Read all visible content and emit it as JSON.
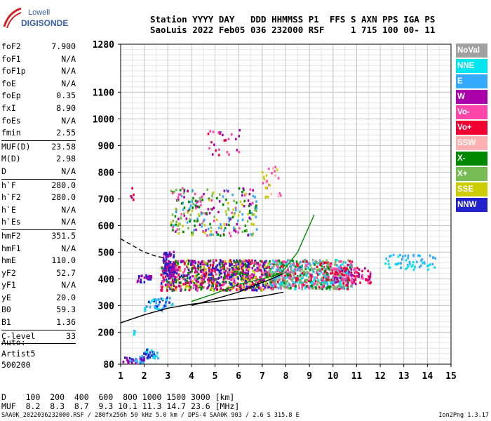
{
  "logo": {
    "line1": "Lowell",
    "line2": "DIGISONDE"
  },
  "header": {
    "labels": "Station YYYY DAY   DDD HHMMSS P1  FFS S AXN PPS IGA PS",
    "values": "SaoLuis 2022 Feb05 036 232000 RSF     1 715 100 00- 11"
  },
  "params": [
    {
      "k": "foF2",
      "v": "7.900"
    },
    {
      "k": "foF1",
      "v": "N/A"
    },
    {
      "k": "foF1p",
      "v": "N/A"
    },
    {
      "k": "foE",
      "v": "N/A"
    },
    {
      "k": "foEp",
      "v": "0.35"
    },
    {
      "k": "fxI",
      "v": "8.90"
    },
    {
      "k": "foEs",
      "v": "N/A"
    },
    {
      "k": "fmin",
      "v": "2.55"
    },
    {
      "sep": true
    },
    {
      "k": "MUF(D)",
      "v": "23.58"
    },
    {
      "k": "M(D)",
      "v": "2.98"
    },
    {
      "k": "D",
      "v": "N/A"
    },
    {
      "sep": true
    },
    {
      "k": "h`F",
      "v": "280.0"
    },
    {
      "k": "h`F2",
      "v": "280.0"
    },
    {
      "k": "h`E",
      "v": "N/A"
    },
    {
      "k": "h`Es",
      "v": "N/A"
    },
    {
      "sep": true
    },
    {
      "k": "hmF2",
      "v": "351.5"
    },
    {
      "k": "hmF1",
      "v": "N/A"
    },
    {
      "k": "hmE",
      "v": "110.0"
    },
    {
      "k": "yF2",
      "v": "52.7"
    },
    {
      "k": "yF1",
      "v": "N/A"
    },
    {
      "k": "yE",
      "v": "20.0"
    },
    {
      "k": "B0",
      "v": "59.3"
    },
    {
      "k": "B1",
      "v": "1.36"
    },
    {
      "sep": true
    },
    {
      "k": "C-level",
      "v": "33"
    },
    {
      "sep": true
    }
  ],
  "auto": {
    "l1": "Auto:",
    "l2": "Artist5",
    "l3": "500200"
  },
  "dmuf": {
    "d_row": "D    100  200  400  600  800 1000 1500 3000 [km]",
    "muf_row": "MUF  8.2  8.3  8.7  9.3 10.1 11.3 14.7 23.6 [MHz]"
  },
  "footer": "SAA0K_2022036232000.RSF / 280fx256h 50 kHz 5.0 km / DPS-4 SAA0K 903 / 2.6 S 315.8 E",
  "version": "Ion2Png 1.3.17",
  "legend": [
    {
      "label": "NoVal",
      "color": "#a0a0a0"
    },
    {
      "label": "NNE",
      "color": "#00e5ee"
    },
    {
      "label": "E",
      "color": "#33aaff"
    },
    {
      "label": "W",
      "color": "#aa00aa"
    },
    {
      "label": "Vo-",
      "color": "#ff44aa"
    },
    {
      "label": "Vo+",
      "color": "#ee0033"
    },
    {
      "label": "SSW",
      "color": "#ffb0b0"
    },
    {
      "label": "X-",
      "color": "#008800"
    },
    {
      "label": "X+",
      "color": "#77bb55"
    },
    {
      "label": "SSE",
      "color": "#cccc00"
    },
    {
      "label": "NNW",
      "color": "#2222cc"
    }
  ],
  "chart_data": {
    "type": "scatter",
    "title": "",
    "xlabel": "",
    "ylabel": "",
    "xlim": [
      1,
      15
    ],
    "ylim": [
      80,
      1280
    ],
    "xticks": [
      1,
      2,
      3,
      4,
      5,
      6,
      7,
      8,
      9,
      10,
      11,
      12,
      13,
      14,
      15
    ],
    "yticks": [
      80,
      200,
      300,
      400,
      500,
      600,
      700,
      800,
      900,
      1000,
      1100,
      1280
    ],
    "ylabel_ticks": [
      80,
      200,
      300,
      400,
      500,
      600,
      700,
      800,
      900,
      1000,
      1100,
      1280
    ],
    "grid": true,
    "ionogram_clusters": [
      {
        "x": [
          1.1,
          2.0
        ],
        "y": [
          80,
          105
        ],
        "colors": [
          "#2222cc",
          "#33aaff",
          "#aa00aa"
        ],
        "n": 40
      },
      {
        "x": [
          1.9,
          2.6
        ],
        "y": [
          100,
          135
        ],
        "colors": [
          "#00e5ee",
          "#33aaff",
          "#2222cc"
        ],
        "n": 35
      },
      {
        "x": [
          1.5,
          1.6
        ],
        "y": [
          190,
          205
        ],
        "colors": [
          "#33aaff",
          "#00e5ee"
        ],
        "n": 5
      },
      {
        "x": [
          1.7,
          2.3
        ],
        "y": [
          385,
          415
        ],
        "colors": [
          "#2222cc",
          "#aa00aa"
        ],
        "n": 30
      },
      {
        "x": [
          2.7,
          7.3
        ],
        "y": [
          355,
          470
        ],
        "colors": [
          "#aa00aa",
          "#ee0033",
          "#ff44aa",
          "#2222cc",
          "#cccc00",
          "#008800"
        ],
        "n": 900
      },
      {
        "x": [
          2.8,
          3.3
        ],
        "y": [
          405,
          500
        ],
        "colors": [
          "#aa00aa",
          "#2222cc"
        ],
        "n": 80
      },
      {
        "x": [
          7.3,
          10.8
        ],
        "y": [
          360,
          470
        ],
        "colors": [
          "#33aaff",
          "#00e5ee",
          "#77bb55",
          "#008800",
          "#ff44aa",
          "#ee0033",
          "#a0a0a0"
        ],
        "n": 700
      },
      {
        "x": [
          10.0,
          11.6
        ],
        "y": [
          380,
          440
        ],
        "colors": [
          "#ee0033",
          "#ff44aa",
          "#aa00aa"
        ],
        "n": 100
      },
      {
        "x": [
          12.2,
          14.4
        ],
        "y": [
          430,
          490
        ],
        "colors": [
          "#00e5ee",
          "#33aaff"
        ],
        "n": 60
      },
      {
        "x": [
          3.1,
          6.8
        ],
        "y": [
          560,
          740
        ],
        "colors": [
          "#008800",
          "#77bb55",
          "#cccc00",
          "#ff44aa",
          "#aa00aa",
          "#33aaff"
        ],
        "n": 260
      },
      {
        "x": [
          4.6,
          6.1
        ],
        "y": [
          860,
          960
        ],
        "colors": [
          "#ee0033",
          "#ff44aa",
          "#aa00aa"
        ],
        "n": 25
      },
      {
        "x": [
          7.0,
          7.8
        ],
        "y": [
          700,
          820
        ],
        "colors": [
          "#ffb0b0",
          "#cccc00",
          "#ff44aa"
        ],
        "n": 30
      },
      {
        "x": [
          1.4,
          1.6
        ],
        "y": [
          690,
          740
        ],
        "colors": [
          "#ee0033",
          "#aa00aa"
        ],
        "n": 6
      },
      {
        "x": [
          2.0,
          3.2
        ],
        "y": [
          280,
          330
        ],
        "colors": [
          "#33aaff",
          "#00e5ee",
          "#2222cc"
        ],
        "n": 50
      }
    ],
    "trace_x_mode_line": {
      "x": [
        4.0,
        5.0,
        6.0,
        7.0,
        7.8,
        8.5,
        9.0,
        9.2
      ],
      "y": [
        315,
        345,
        380,
        400,
        420,
        500,
        600,
        640
      ],
      "color": "#008800"
    },
    "trace_o_mode": {
      "x": [
        1.0,
        2.0,
        3.0,
        4.0,
        5.0,
        6.0,
        7.0,
        7.9
      ],
      "y": [
        235,
        265,
        290,
        305,
        315,
        325,
        335,
        350
      ],
      "color": "#000000"
    },
    "trace_o_mode_upper": {
      "x": [
        4.0,
        5.0,
        6.0,
        6.8,
        7.4,
        7.9
      ],
      "y": [
        300,
        325,
        350,
        380,
        400,
        420
      ],
      "color": "#000000"
    },
    "profile_dashed": {
      "x": [
        1.0,
        1.5,
        2.0,
        2.5,
        2.8
      ],
      "y": [
        550,
        525,
        500,
        485,
        480
      ],
      "color": "#000000"
    }
  }
}
